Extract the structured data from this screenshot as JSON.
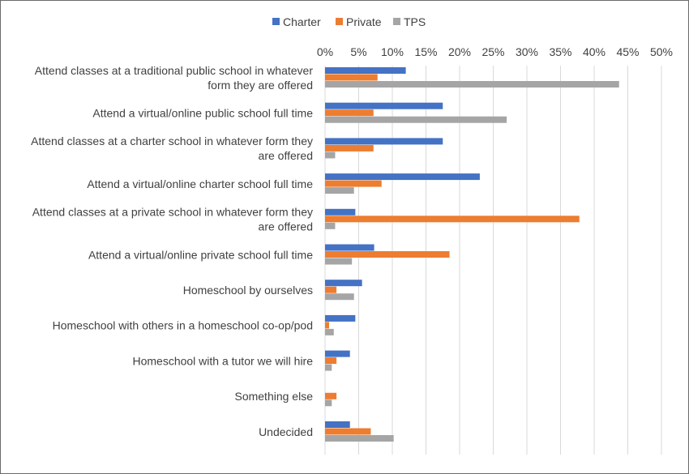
{
  "chart_data": {
    "type": "bar",
    "orientation": "horizontal",
    "title": "",
    "xlabel": "",
    "ylabel": "",
    "xlim": [
      0,
      50
    ],
    "x_ticks": [
      "0%",
      "5%",
      "10%",
      "15%",
      "20%",
      "25%",
      "30%",
      "35%",
      "40%",
      "45%",
      "50%"
    ],
    "grid": true,
    "legend_position": "top",
    "categories": [
      [
        "Attend classes at a traditional public school in whatever",
        "form they are offered"
      ],
      [
        "Attend a virtual/online public school full time"
      ],
      [
        "Attend classes at a charter school in whatever form they",
        "are offered"
      ],
      [
        "Attend a virtual/online charter school full time"
      ],
      [
        "Attend classes at a private school in whatever form they",
        "are offered"
      ],
      [
        "Attend a virtual/online private school full time"
      ],
      [
        "Homeschool by ourselves"
      ],
      [
        "Homeschool with others in a homeschool co-op/pod"
      ],
      [
        "Homeschool with a tutor we will hire"
      ],
      [
        "Something else"
      ],
      [
        "Undecided"
      ]
    ],
    "series": [
      {
        "name": "Charter",
        "color": "#4472c4",
        "values": [
          12,
          17.5,
          17.5,
          23,
          4.5,
          7.3,
          5.5,
          4.5,
          3.7,
          0,
          3.7
        ]
      },
      {
        "name": "Private",
        "color": "#ed7d31",
        "values": [
          7.8,
          7.2,
          7.2,
          8.4,
          37.8,
          18.5,
          1.7,
          0.6,
          1.7,
          1.7,
          6.8
        ]
      },
      {
        "name": "TPS",
        "color": "#a5a5a5",
        "values": [
          43.7,
          27,
          1.5,
          4.3,
          1.5,
          4,
          4.3,
          1.3,
          1,
          1,
          10.2
        ]
      }
    ]
  }
}
